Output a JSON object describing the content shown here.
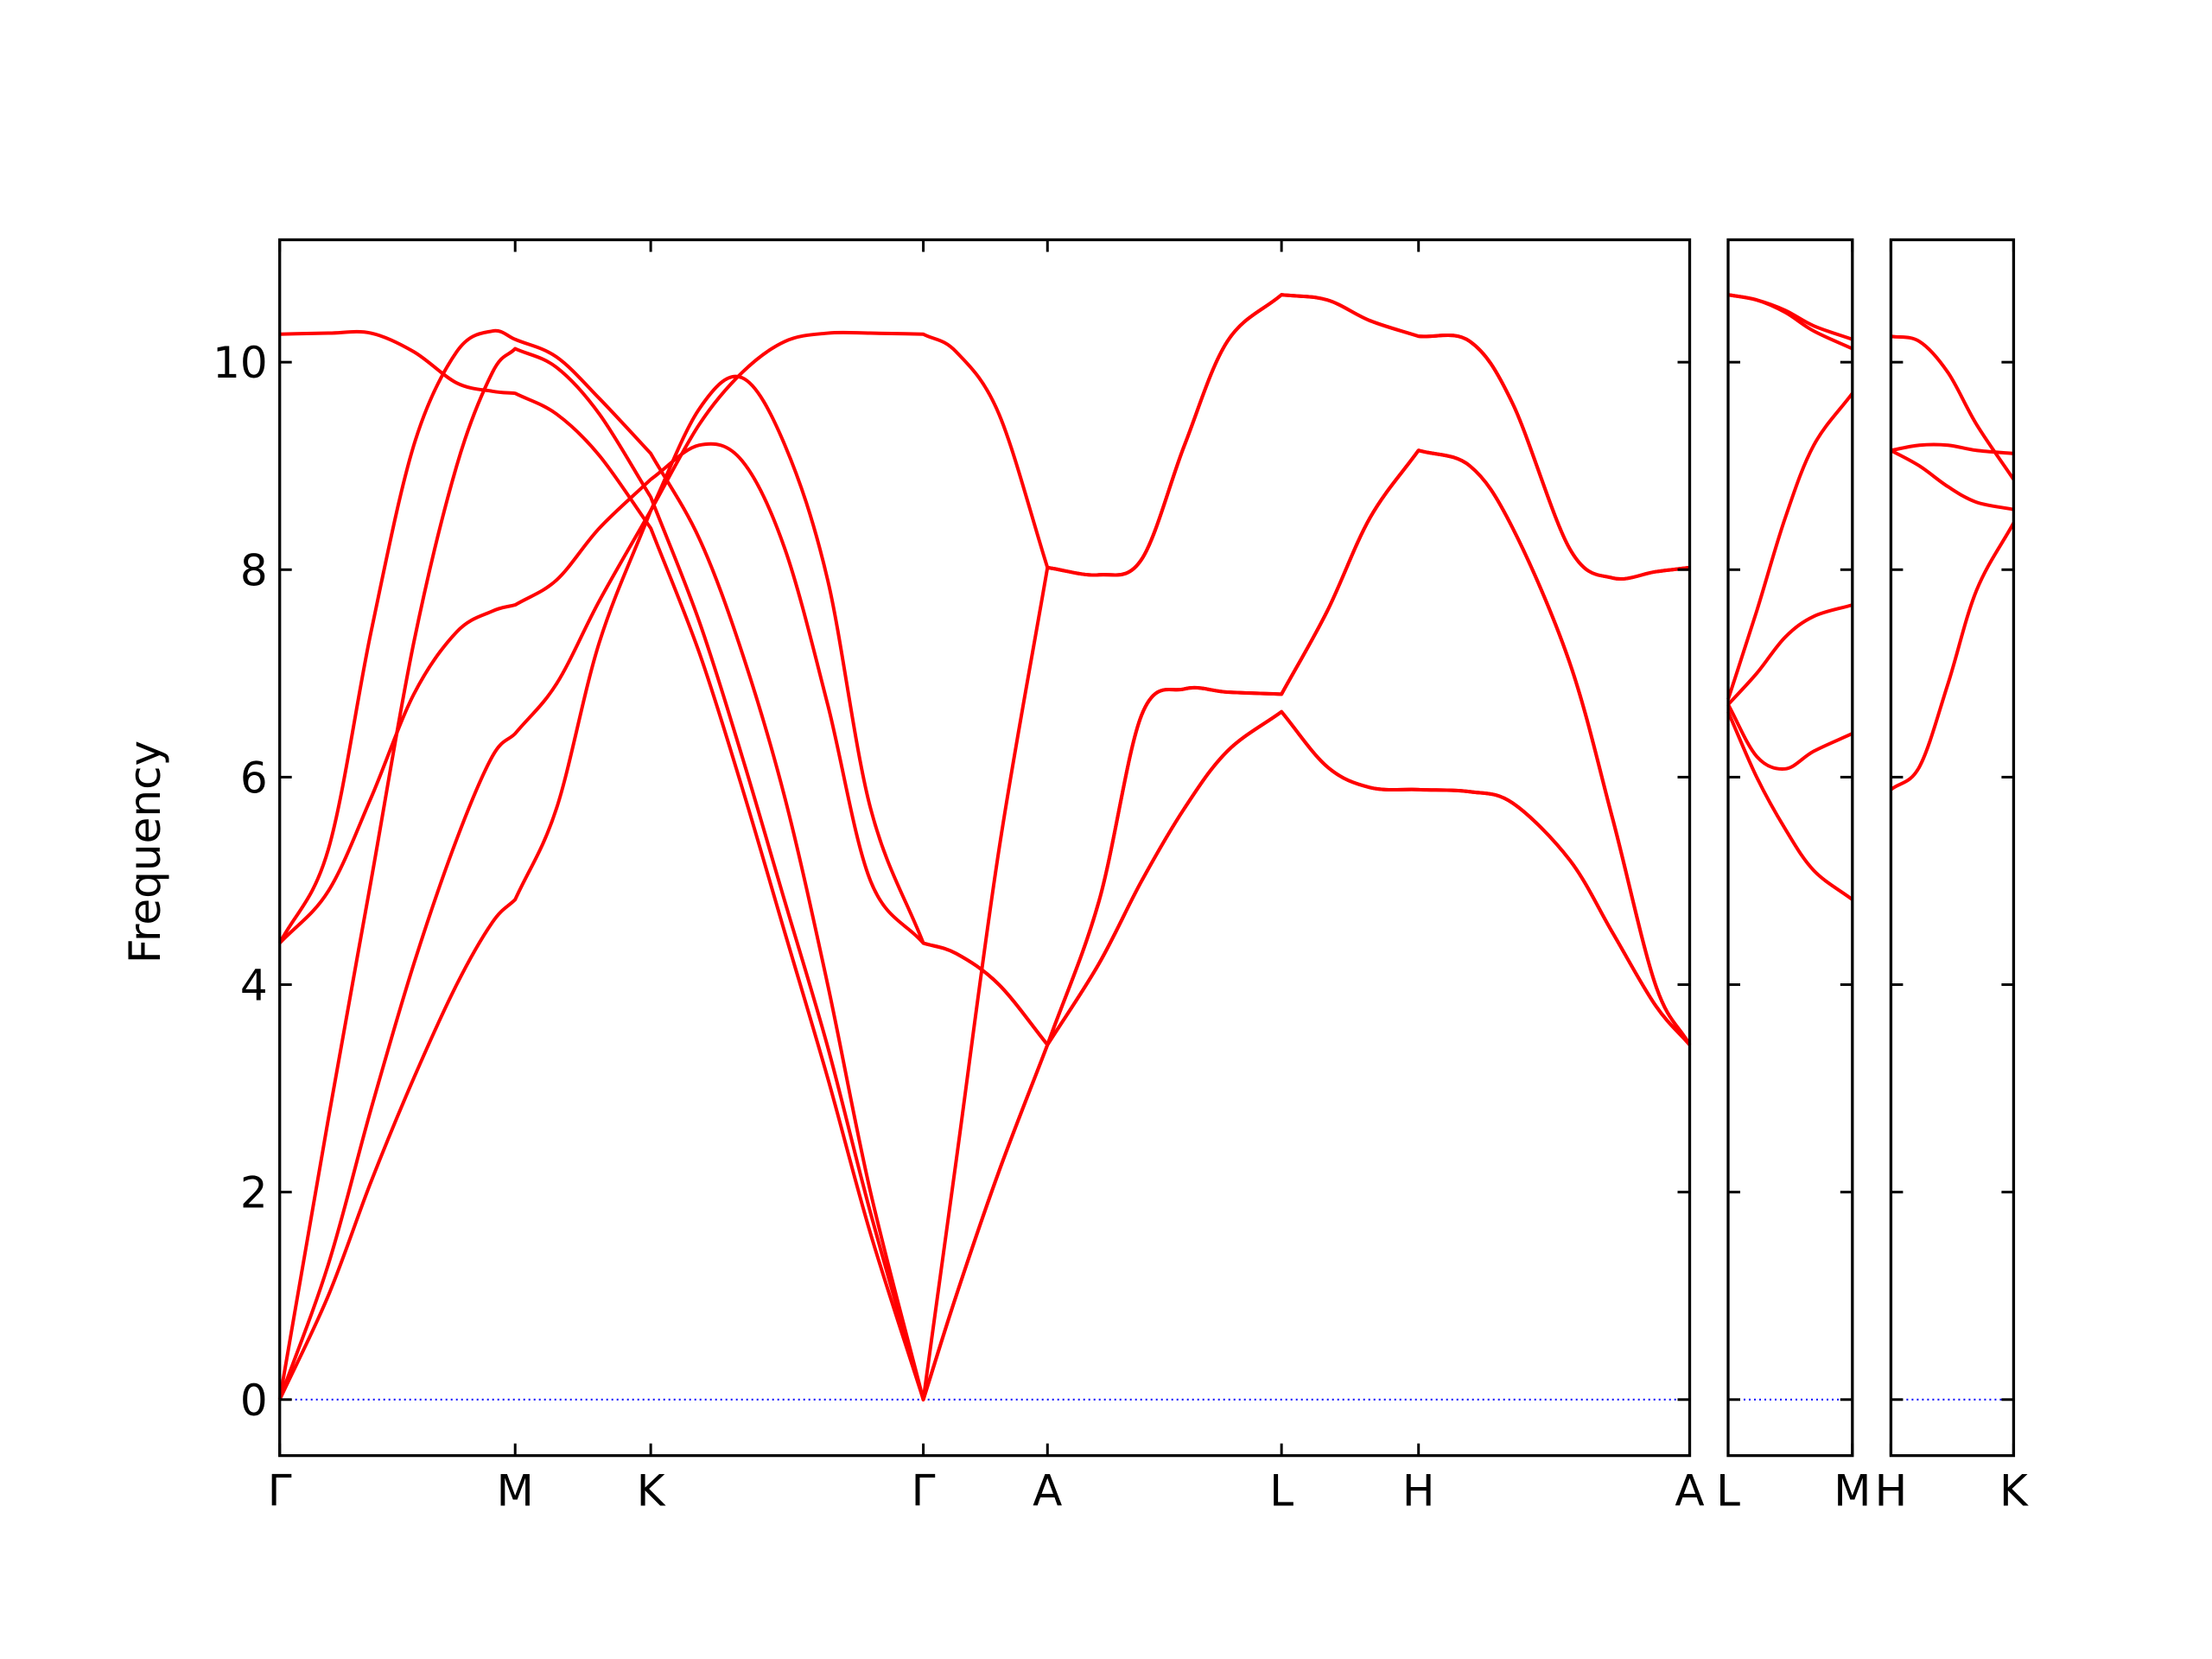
{
  "chart_data": [
    {
      "type": "line",
      "ylabel": "Frequency",
      "color": "#ff0000",
      "ylim": [
        -0.54,
        11.18
      ],
      "yticks": [
        0,
        2,
        4,
        6,
        8,
        10
      ],
      "hline": 0,
      "hline_color": "#0000ff",
      "xlim": [
        0,
        9.88
      ],
      "xticks": [
        {
          "value": 0,
          "label": "Γ"
        },
        {
          "value": 1.65,
          "label": "M"
        },
        {
          "value": 2.6,
          "label": "K"
        },
        {
          "value": 4.51,
          "label": "Γ"
        },
        {
          "value": 5.38,
          "label": "A"
        },
        {
          "value": 7.02,
          "label": "L"
        },
        {
          "value": 7.98,
          "label": "H"
        },
        {
          "value": 9.88,
          "label": "A"
        }
      ],
      "x": [
        0,
        0.34,
        0.64,
        0.94,
        1.24,
        1.49,
        1.65,
        1.94,
        2.24,
        2.6,
        2.94,
        3.24,
        3.54,
        3.84,
        4.14,
        4.51,
        4.74,
        5.04,
        5.38,
        5.74,
        6.04,
        6.34,
        6.64,
        7.02,
        7.34,
        7.64,
        7.98,
        8.34,
        8.64,
        9.04,
        9.34,
        9.64,
        9.88
      ],
      "series": [
        {
          "values": [
            0,
            1.0,
            2.1,
            3.1,
            4.0,
            4.6,
            4.82,
            5.7,
            7.3,
            8.57,
            9.55,
            9.85,
            9.2,
            7.9,
            5.7,
            4.4,
            4.3,
            4.0,
            3.42,
            4.8,
            6.6,
            6.85,
            6.82,
            6.8,
            7.6,
            8.5,
            9.15,
            9.0,
            8.4,
            7.1,
            5.6,
            4.0,
            3.42
          ]
        },
        {
          "values": [
            0,
            1.3,
            2.8,
            4.2,
            5.4,
            6.2,
            6.42,
            6.9,
            7.7,
            8.57,
            9.4,
            9.9,
            10.2,
            10.28,
            10.28,
            10.27,
            10.1,
            9.5,
            8.02,
            7.95,
            8.1,
            9.2,
            10.2,
            10.65,
            10.6,
            10.4,
            10.25,
            10.2,
            9.6,
            8.2,
            7.92,
            7.98,
            8.02
          ]
        },
        {
          "values": [
            4.4,
            4.9,
            5.8,
            6.8,
            7.4,
            7.6,
            7.66,
            7.9,
            8.4,
            8.87,
            9.2,
            9.05,
            8.2,
            6.7,
            5.0,
            4.4,
            4.3,
            4.0,
            3.42,
            4.8,
            6.6,
            6.85,
            6.82,
            6.8,
            7.6,
            8.5,
            9.15,
            9.0,
            8.4,
            7.1,
            5.6,
            4.0,
            3.42
          ]
        },
        {
          "values": [
            10.27,
            10.28,
            10.28,
            10.1,
            9.8,
            9.72,
            9.7,
            9.5,
            9.1,
            8.4,
            7.2,
            5.9,
            4.5,
            3.1,
            1.6,
            0,
            1.0,
            2.2,
            3.42,
            4.2,
            5.0,
            5.7,
            6.25,
            6.63,
            6.1,
            5.9,
            5.88,
            5.86,
            5.75,
            5.2,
            4.5,
            3.8,
            3.42
          ]
        },
        {
          "values": [
            0,
            2.7,
            5.0,
            7.3,
            9.0,
            9.9,
            10.13,
            9.95,
            9.5,
            8.7,
            7.5,
            6.2,
            4.8,
            3.4,
            1.8,
            0,
            1.0,
            2.2,
            3.42,
            4.2,
            5.0,
            5.7,
            6.25,
            6.63,
            6.1,
            5.9,
            5.88,
            5.86,
            5.75,
            5.2,
            4.5,
            3.8,
            3.42
          ]
        },
        {
          "values": [
            4.4,
            5.3,
            7.4,
            9.2,
            10.1,
            10.3,
            10.22,
            10.05,
            9.65,
            9.12,
            8.3,
            7.2,
            5.8,
            4.0,
            2.0,
            0,
            2.3,
            5.3,
            8.02,
            7.95,
            8.1,
            9.2,
            10.2,
            10.65,
            10.6,
            10.4,
            10.25,
            10.2,
            9.6,
            8.2,
            7.92,
            7.98,
            8.02
          ]
        }
      ]
    },
    {
      "type": "line",
      "color": "#ff0000",
      "xlim": [
        0,
        0.87
      ],
      "xticks": [
        {
          "value": 0,
          "label": "L"
        },
        {
          "value": 0.87,
          "label": "M"
        }
      ],
      "x": [
        0,
        0.2,
        0.4,
        0.6,
        0.87
      ],
      "series": [
        {
          "values": [
            10.65,
            10.6,
            10.5,
            10.35,
            10.22
          ]
        },
        {
          "values": [
            10.65,
            10.6,
            10.48,
            10.3,
            10.13
          ]
        },
        {
          "values": [
            6.75,
            7.6,
            8.5,
            9.2,
            9.7
          ]
        },
        {
          "values": [
            6.7,
            7.0,
            7.35,
            7.55,
            7.66
          ]
        },
        {
          "values": [
            6.7,
            6.2,
            6.08,
            6.25,
            6.42
          ]
        },
        {
          "values": [
            6.63,
            6.0,
            5.5,
            5.1,
            4.82
          ]
        }
      ]
    },
    {
      "type": "line",
      "color": "#ff0000",
      "xlim": [
        0,
        0.86
      ],
      "xticks": [
        {
          "value": 0,
          "label": "H"
        },
        {
          "value": 0.86,
          "label": "K"
        }
      ],
      "x": [
        0,
        0.2,
        0.4,
        0.6,
        0.86
      ],
      "series": [
        {
          "values": [
            10.25,
            10.2,
            9.9,
            9.4,
            8.87
          ]
        },
        {
          "values": [
            9.15,
            9.2,
            9.2,
            9.15,
            9.12
          ]
        },
        {
          "values": [
            9.15,
            9.0,
            8.8,
            8.65,
            8.58
          ]
        },
        {
          "values": [
            5.88,
            6.1,
            6.9,
            7.8,
            8.45
          ]
        }
      ]
    }
  ]
}
